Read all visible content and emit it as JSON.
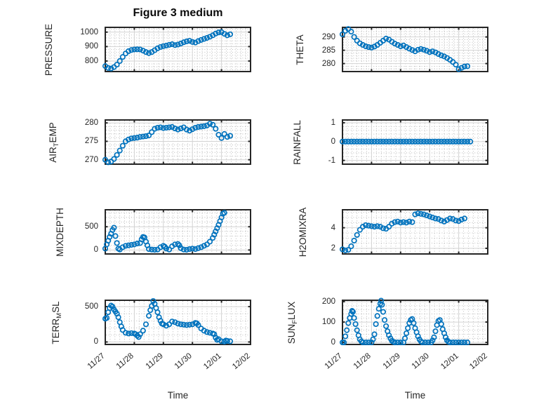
{
  "title": "Figure 3 medium",
  "xlabel": "Time",
  "colors": {
    "marker": "#0072BD",
    "axes_box": "#262626",
    "grid_major": "#d2d2d2",
    "grid_minor": "#ababab",
    "text": "#262626",
    "title_text": "#0a0a0a"
  },
  "x_axis": {
    "xlim": [
      0,
      5
    ],
    "tick_values": [
      0,
      1,
      2,
      3,
      4,
      5
    ],
    "tick_labels": [
      "11/27",
      "11/28",
      "11/29",
      "11/30",
      "12/01",
      "12/02"
    ],
    "minor_step": 0.1667,
    "grid": "on",
    "minor_grid": "dotted"
  },
  "chart_data": [
    {
      "type": "scatter",
      "name": "pressure",
      "ylabel_parts": [
        {
          "text": "PRESSURE",
          "sub": false
        }
      ],
      "ylim": [
        727,
        1033
      ],
      "yticks": [
        800,
        900,
        1000
      ],
      "ytick_labels": [
        "800",
        "900",
        "1000"
      ],
      "yminor_step": 20,
      "x": [
        0,
        0.1,
        0.2,
        0.3,
        0.4,
        0.5,
        0.6,
        0.7,
        0.8,
        0.9,
        1.0,
        1.1,
        1.2,
        1.3,
        1.4,
        1.5,
        1.6,
        1.7,
        1.8,
        1.9,
        2.0,
        2.1,
        2.2,
        2.3,
        2.4,
        2.5,
        2.6,
        2.7,
        2.8,
        2.9,
        3.0,
        3.1,
        3.2,
        3.3,
        3.4,
        3.5,
        3.6,
        3.7,
        3.8,
        3.9,
        4.0,
        4.1,
        4.2,
        4.3
      ],
      "y": [
        765,
        752,
        748,
        758,
        775,
        800,
        828,
        852,
        868,
        876,
        880,
        881,
        880,
        872,
        862,
        855,
        862,
        875,
        888,
        897,
        903,
        907,
        912,
        916,
        910,
        914,
        921,
        930,
        936,
        940,
        932,
        928,
        938,
        946,
        953,
        960,
        968,
        978,
        990,
        998,
        1000,
        988,
        978,
        985
      ]
    },
    {
      "type": "scatter",
      "name": "theta",
      "ylabel_parts": [
        {
          "text": "THETA",
          "sub": false
        }
      ],
      "ylim": [
        277.0,
        293.6
      ],
      "yticks": [
        280,
        285,
        290
      ],
      "ytick_labels": [
        "280",
        "285",
        "290"
      ],
      "yminor_step": 1,
      "x": [
        0,
        0.1,
        0.2,
        0.3,
        0.4,
        0.5,
        0.6,
        0.7,
        0.8,
        0.9,
        1.0,
        1.1,
        1.2,
        1.3,
        1.4,
        1.5,
        1.6,
        1.7,
        1.8,
        1.9,
        2.0,
        2.1,
        2.2,
        2.3,
        2.4,
        2.5,
        2.6,
        2.7,
        2.8,
        2.9,
        3.0,
        3.1,
        3.2,
        3.3,
        3.4,
        3.5,
        3.6,
        3.7,
        3.8,
        3.9,
        4.0,
        4.1,
        4.2,
        4.3
      ],
      "y": [
        291.0,
        292.3,
        293.0,
        292.0,
        290.0,
        288.6,
        287.6,
        287.0,
        286.5,
        286.2,
        286.0,
        286.4,
        287.0,
        287.8,
        288.6,
        289.4,
        289.0,
        288.2,
        287.5,
        287.0,
        286.5,
        286.8,
        286.2,
        285.6,
        285.1,
        284.6,
        285.2,
        285.5,
        285.2,
        284.8,
        284.3,
        284.6,
        284.2,
        283.6,
        283.1,
        282.7,
        282.1,
        281.4,
        280.6,
        279.6,
        277.9,
        278.4,
        278.9,
        279.0
      ]
    },
    {
      "type": "scatter",
      "name": "air-temp",
      "ylabel_parts": [
        {
          "text": "AIR",
          "sub": false
        },
        {
          "text": "T",
          "sub": true
        },
        {
          "text": "EMP",
          "sub": false
        }
      ],
      "ylim": [
        268.8,
        280.8
      ],
      "yticks": [
        270,
        275,
        280
      ],
      "ytick_labels": [
        "270",
        "275",
        "280"
      ],
      "yminor_step": 1,
      "x": [
        0,
        0.1,
        0.2,
        0.3,
        0.4,
        0.5,
        0.6,
        0.7,
        0.8,
        0.9,
        1.0,
        1.1,
        1.2,
        1.3,
        1.4,
        1.5,
        1.6,
        1.7,
        1.8,
        1.9,
        2.0,
        2.1,
        2.2,
        2.3,
        2.4,
        2.5,
        2.6,
        2.7,
        2.8,
        2.9,
        3.0,
        3.1,
        3.2,
        3.3,
        3.4,
        3.5,
        3.6,
        3.7,
        3.8,
        3.9,
        4.0,
        4.1,
        4.2,
        4.3
      ],
      "y": [
        270.0,
        269.3,
        269.5,
        270.2,
        271.3,
        272.5,
        273.8,
        275.0,
        275.5,
        275.8,
        275.9,
        276.0,
        276.2,
        276.3,
        276.4,
        276.6,
        277.5,
        278.4,
        278.7,
        278.8,
        278.6,
        278.7,
        278.8,
        278.9,
        278.5,
        278.2,
        278.5,
        278.8,
        278.2,
        277.9,
        278.3,
        278.7,
        278.9,
        279.0,
        279.1,
        279.3,
        279.8,
        279.5,
        278.4,
        276.8,
        275.9,
        277.0,
        276.2,
        276.5
      ]
    },
    {
      "type": "scatter",
      "name": "rainfall",
      "ylabel_parts": [
        {
          "text": "RAINFALL",
          "sub": false
        }
      ],
      "ylim": [
        -1.2,
        1.15
      ],
      "yticks": [
        -1,
        0,
        1
      ],
      "ytick_labels": [
        "-1",
        "0",
        "1"
      ],
      "yminor_step": 0.2,
      "x": [
        0,
        0.1,
        0.2,
        0.3,
        0.4,
        0.5,
        0.6,
        0.7,
        0.8,
        0.9,
        1.0,
        1.1,
        1.2,
        1.3,
        1.4,
        1.5,
        1.6,
        1.7,
        1.8,
        1.9,
        2.0,
        2.1,
        2.2,
        2.3,
        2.4,
        2.5,
        2.6,
        2.7,
        2.8,
        2.9,
        3.0,
        3.1,
        3.2,
        3.3,
        3.4,
        3.5,
        3.6,
        3.7,
        3.8,
        3.9,
        4.0,
        4.1,
        4.2,
        4.3,
        4.4
      ],
      "y": [
        0,
        0,
        0,
        0,
        0,
        0,
        0,
        0,
        0,
        0,
        0,
        0,
        0,
        0,
        0,
        0,
        0,
        0,
        0,
        0,
        0,
        0,
        0,
        0,
        0,
        0,
        0,
        0,
        0,
        0,
        0,
        0,
        0,
        0,
        0,
        0,
        0,
        0,
        0,
        0,
        0,
        0,
        0,
        0,
        0
      ]
    },
    {
      "type": "scatter",
      "name": "mixdepth",
      "ylabel_parts": [
        {
          "text": "MIXDEPTH",
          "sub": false
        }
      ],
      "ylim": [
        -85,
        865
      ],
      "yticks": [
        0,
        500
      ],
      "ytick_labels": [
        "0",
        "500"
      ],
      "yminor_step": 100,
      "x": [
        0,
        0.05,
        0.1,
        0.15,
        0.2,
        0.25,
        0.3,
        0.35,
        0.4,
        0.45,
        0.5,
        0.6,
        0.7,
        0.8,
        0.9,
        1.0,
        1.1,
        1.2,
        1.25,
        1.3,
        1.35,
        1.4,
        1.45,
        1.5,
        1.6,
        1.7,
        1.8,
        1.9,
        2.0,
        2.05,
        2.1,
        2.2,
        2.3,
        2.4,
        2.5,
        2.55,
        2.6,
        2.7,
        2.8,
        2.9,
        3.0,
        3.1,
        3.2,
        3.3,
        3.4,
        3.5,
        3.6,
        3.7,
        3.75,
        3.8,
        3.85,
        3.9,
        3.95,
        4.0,
        4.05,
        4.1
      ],
      "y": [
        30,
        120,
        200,
        280,
        350,
        430,
        480,
        300,
        150,
        30,
        10,
        60,
        90,
        100,
        110,
        120,
        140,
        150,
        230,
        280,
        270,
        180,
        100,
        20,
        10,
        5,
        10,
        60,
        90,
        70,
        30,
        10,
        80,
        120,
        130,
        100,
        40,
        10,
        5,
        20,
        30,
        20,
        40,
        60,
        90,
        120,
        180,
        260,
        330,
        400,
        470,
        540,
        620,
        700,
        780,
        800
      ]
    },
    {
      "type": "scatter",
      "name": "h2omixra",
      "ylabel_parts": [
        {
          "text": "H2OMIXRA",
          "sub": false
        }
      ],
      "ylim": [
        1.45,
        5.75
      ],
      "yticks": [
        2,
        4
      ],
      "ytick_labels": [
        "2",
        "4"
      ],
      "yminor_step": 0.5,
      "x": [
        0,
        0.1,
        0.2,
        0.3,
        0.4,
        0.5,
        0.6,
        0.7,
        0.8,
        0.9,
        1.0,
        1.1,
        1.2,
        1.3,
        1.4,
        1.5,
        1.6,
        1.7,
        1.8,
        1.9,
        2.0,
        2.1,
        2.2,
        2.3,
        2.4,
        2.5,
        2.6,
        2.7,
        2.8,
        2.9,
        3.0,
        3.1,
        3.2,
        3.3,
        3.4,
        3.5,
        3.6,
        3.7,
        3.8,
        3.9,
        4.0,
        4.1,
        4.2
      ],
      "y": [
        1.9,
        1.8,
        1.85,
        2.2,
        2.75,
        3.3,
        3.8,
        4.1,
        4.25,
        4.2,
        4.15,
        4.1,
        4.15,
        4.1,
        3.95,
        3.9,
        4.1,
        4.4,
        4.55,
        4.6,
        4.5,
        4.55,
        4.5,
        4.6,
        4.55,
        5.3,
        5.4,
        5.35,
        5.3,
        5.2,
        5.1,
        5.0,
        4.9,
        4.85,
        4.7,
        4.6,
        4.75,
        4.9,
        4.85,
        4.7,
        4.65,
        4.8,
        4.9
      ]
    },
    {
      "type": "scatter",
      "name": "terr-msl",
      "ylabel_parts": [
        {
          "text": "TERR",
          "sub": false
        },
        {
          "text": "M",
          "sub": true
        },
        {
          "text": "SL",
          "sub": false
        }
      ],
      "ylim": [
        -35,
        590
      ],
      "yticks": [
        0,
        500
      ],
      "ytick_labels": [
        "0",
        "500"
      ],
      "yminor_step": 100,
      "x": [
        0,
        0.05,
        0.1,
        0.15,
        0.2,
        0.25,
        0.3,
        0.35,
        0.4,
        0.45,
        0.5,
        0.55,
        0.6,
        0.7,
        0.8,
        0.9,
        1.0,
        1.05,
        1.1,
        1.15,
        1.2,
        1.3,
        1.4,
        1.5,
        1.55,
        1.6,
        1.65,
        1.7,
        1.75,
        1.8,
        1.85,
        1.9,
        1.95,
        2.0,
        2.1,
        2.2,
        2.3,
        2.4,
        2.5,
        2.6,
        2.7,
        2.8,
        2.9,
        3.0,
        3.1,
        3.15,
        3.2,
        3.3,
        3.4,
        3.5,
        3.6,
        3.7,
        3.75,
        3.8,
        3.85,
        3.9,
        4.0,
        4.1,
        4.15,
        4.2,
        4.3
      ],
      "y": [
        330,
        340,
        420,
        480,
        515,
        500,
        460,
        430,
        400,
        350,
        280,
        220,
        170,
        130,
        120,
        125,
        120,
        110,
        90,
        70,
        110,
        160,
        250,
        370,
        450,
        510,
        580,
        540,
        480,
        420,
        350,
        300,
        260,
        250,
        230,
        250,
        290,
        280,
        260,
        250,
        245,
        240,
        245,
        250,
        270,
        265,
        240,
        190,
        160,
        140,
        130,
        120,
        110,
        60,
        30,
        40,
        10,
        5,
        20,
        15,
        10
      ]
    },
    {
      "type": "scatter",
      "name": "sun-flux",
      "ylabel_parts": [
        {
          "text": "SUN",
          "sub": false
        },
        {
          "text": "F",
          "sub": true
        },
        {
          "text": "LUX",
          "sub": false
        }
      ],
      "ylim": [
        -10,
        207
      ],
      "yticks": [
        0,
        100,
        200
      ],
      "ytick_labels": [
        "0",
        "100",
        "200"
      ],
      "yminor_step": 20,
      "x": [
        0,
        0.05,
        0.1,
        0.15,
        0.2,
        0.25,
        0.3,
        0.33,
        0.36,
        0.4,
        0.45,
        0.5,
        0.55,
        0.6,
        0.65,
        0.7,
        0.8,
        0.9,
        1.0,
        1.05,
        1.1,
        1.15,
        1.2,
        1.25,
        1.3,
        1.33,
        1.36,
        1.4,
        1.45,
        1.5,
        1.55,
        1.6,
        1.65,
        1.7,
        1.75,
        1.8,
        1.9,
        2.0,
        2.1,
        2.15,
        2.2,
        2.25,
        2.3,
        2.35,
        2.4,
        2.45,
        2.5,
        2.55,
        2.6,
        2.65,
        2.7,
        2.75,
        2.85,
        2.95,
        3.05,
        3.1,
        3.15,
        3.2,
        3.25,
        3.3,
        3.35,
        3.4,
        3.45,
        3.5,
        3.55,
        3.6,
        3.65,
        3.7,
        3.8,
        3.9,
        4.0,
        4.1,
        4.2,
        4.3
      ],
      "y": [
        0,
        0,
        30,
        60,
        95,
        120,
        140,
        155,
        150,
        120,
        90,
        60,
        35,
        15,
        5,
        0,
        0,
        0,
        0,
        15,
        40,
        90,
        130,
        165,
        190,
        205,
        185,
        150,
        110,
        80,
        55,
        35,
        20,
        8,
        3,
        0,
        0,
        0,
        0,
        20,
        45,
        70,
        95,
        110,
        115,
        95,
        70,
        50,
        30,
        15,
        5,
        0,
        0,
        0,
        0,
        10,
        25,
        55,
        85,
        105,
        110,
        90,
        65,
        45,
        25,
        10,
        3,
        0,
        0,
        0,
        0,
        0,
        0,
        0
      ]
    }
  ]
}
